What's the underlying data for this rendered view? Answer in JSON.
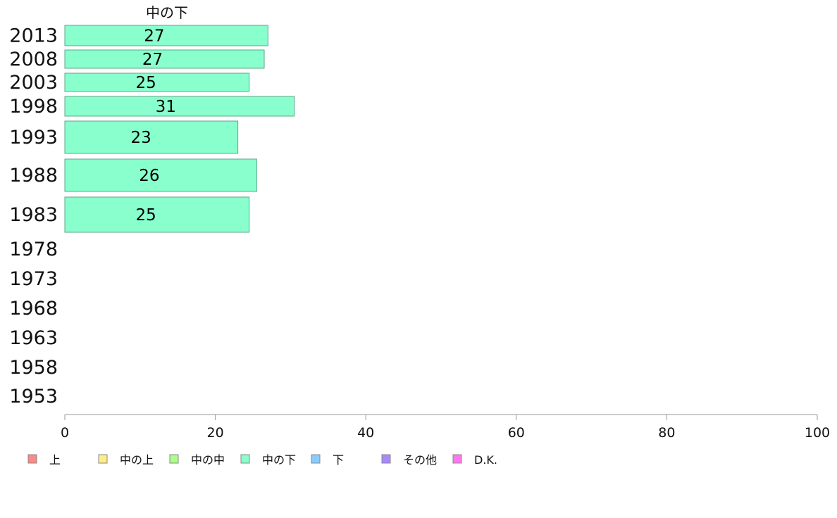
{
  "chart_data": {
    "type": "bar",
    "orientation": "horizontal",
    "title": "中の下",
    "categories": [
      "2013",
      "2008",
      "2003",
      "1998",
      "1993",
      "1988",
      "1983",
      "1978",
      "1973",
      "1968",
      "1963",
      "1958",
      "1953"
    ],
    "series": [
      {
        "name": "中の下",
        "color": "#88ffcc",
        "values": [
          27,
          26.5,
          24.5,
          30.5,
          23,
          25.5,
          24.5,
          null,
          null,
          null,
          null,
          null,
          null
        ],
        "labels": [
          "27",
          "27",
          "25",
          "31",
          "23",
          "26",
          "25",
          "",
          "",
          "",
          "",
          "",
          ""
        ]
      }
    ],
    "xlim": [
      0,
      100
    ],
    "xticks": [
      "0",
      "20",
      "40",
      "60",
      "80",
      "100"
    ],
    "grid": false,
    "legend": {
      "position": "bottom",
      "items": [
        {
          "label": "上",
          "color": "#ff8888"
        },
        {
          "label": "中の上",
          "color": "#ffee88"
        },
        {
          "label": "中の中",
          "color": "#aaff88"
        },
        {
          "label": "中の下",
          "color": "#88ffcc"
        },
        {
          "label": "下",
          "color": "#88ccff"
        },
        {
          "label": "その他",
          "color": "#aa88ff"
        },
        {
          "label": "D.K.",
          "color": "#ff77ee"
        }
      ]
    }
  }
}
